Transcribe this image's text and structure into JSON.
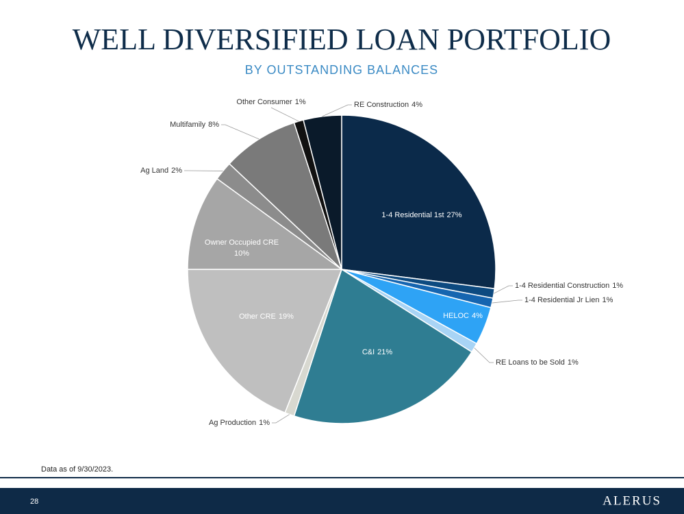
{
  "chart_data": {
    "type": "pie",
    "title": "WELL DIVERSIFIED LOAN PORTFOLIO",
    "subtitle": "BY OUTSTANDING BALANCES",
    "categories": [
      "1-4 Residential 1st",
      "1-4 Residential Construction",
      "1-4 Residential Jr Lien",
      "HELOC",
      "RE Loans to be Sold",
      "C&I",
      "Ag Production",
      "Other CRE",
      "Owner Occupied CRE",
      "Ag Land",
      "Multifamily",
      "Other Consumer",
      "RE Construction"
    ],
    "values": [
      27,
      1,
      1,
      4,
      1,
      21,
      1,
      19,
      10,
      2,
      8,
      1,
      4
    ],
    "value_labels": [
      "27%",
      "1%",
      "1%",
      "4%",
      "1%",
      "21%",
      "1%",
      "19%",
      "10%",
      "2%",
      "8%",
      "1%",
      "4%"
    ],
    "colors": [
      "#0b2a4a",
      "#0d4a80",
      "#1565b0",
      "#2ea3f5",
      "#a8d4f5",
      "#2f7d92",
      "#d8d8d0",
      "#bfbfbf",
      "#a6a6a6",
      "#8c8c8c",
      "#7a7a7a",
      "#111111",
      "#0a1a2a"
    ]
  },
  "footnote": "Data as of 9/30/2023.",
  "page_number": "28",
  "logo": "ALERUS"
}
